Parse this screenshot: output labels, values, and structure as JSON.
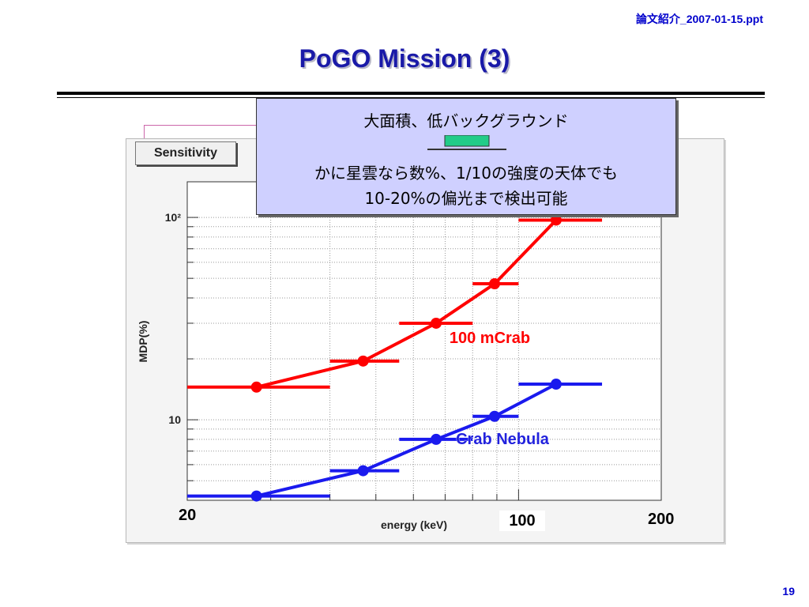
{
  "header": {
    "filename": "論文紹介_2007-01-15.ppt",
    "page_number": "19"
  },
  "slide": {
    "title": "PoGO Mission (3)"
  },
  "panel": {
    "sensitivity_button": "Sensitivity"
  },
  "callout": {
    "line1": "大面積、低バックグラウンド",
    "line2": "かに星雲なら数%、1/10の強度の天体でも",
    "line3": "10-20%の偏光まで検出可能",
    "arrow_color": "#22cc88"
  },
  "axis_overlay_labels": {
    "x_left": "20",
    "x_mid": "100",
    "x_right": "200"
  },
  "chart_data": {
    "type": "scatter",
    "xlabel": "energy (keV)",
    "ylabel": "MDP(%)",
    "x_scale": "log",
    "y_scale": "log",
    "xlim": [
      20,
      200
    ],
    "ylim": [
      4,
      150
    ],
    "y_ticks": [
      {
        "value": 10,
        "label": "10"
      },
      {
        "value": 100,
        "label": "10²"
      }
    ],
    "grid": true,
    "annotations": [
      {
        "text": "100 mCrab",
        "color": "#ff0000"
      },
      {
        "text": "Crab Nebula",
        "color": "#2222dd"
      }
    ],
    "series": [
      {
        "name": "100 mCrab",
        "color": "#ff0000",
        "points": [
          {
            "x": 28,
            "y": 14.5,
            "xerr": [
              20,
              40
            ]
          },
          {
            "x": 47,
            "y": 19.5,
            "xerr": [
              40,
              56
            ]
          },
          {
            "x": 67,
            "y": 30,
            "xerr": [
              56,
              80
            ]
          },
          {
            "x": 89,
            "y": 47,
            "xerr": [
              80,
              100
            ]
          },
          {
            "x": 120,
            "y": 97,
            "xerr": [
              100,
              150
            ]
          }
        ]
      },
      {
        "name": "Crab Nebula",
        "color": "#1a1aee",
        "points": [
          {
            "x": 28,
            "y": 4.2,
            "xerr": [
              20,
              40
            ]
          },
          {
            "x": 47,
            "y": 5.6,
            "xerr": [
              40,
              56
            ]
          },
          {
            "x": 67,
            "y": 8.0,
            "xerr": [
              56,
              80
            ]
          },
          {
            "x": 89,
            "y": 10.4,
            "xerr": [
              80,
              100
            ]
          },
          {
            "x": 120,
            "y": 15,
            "xerr": [
              100,
              150
            ]
          }
        ]
      }
    ]
  }
}
